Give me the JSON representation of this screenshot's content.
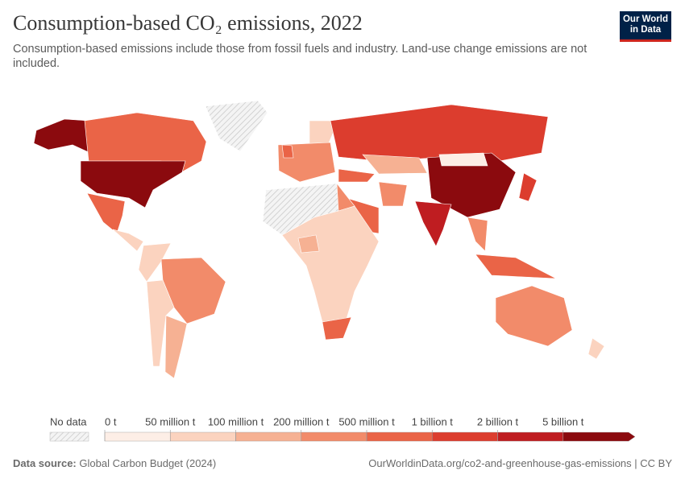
{
  "header": {
    "title": "Consumption-based CO₂ emissions, 2022",
    "subtitle": "Consumption-based emissions include those from fossil fuels and industry. Land-use change emissions are not included.",
    "logo": [
      "Our World",
      "in Data"
    ]
  },
  "chart_data": {
    "type": "choropleth",
    "legend": {
      "no_data_label": "No data",
      "ticks": [
        {
          "value": 0,
          "label": "0 t"
        },
        {
          "value": 50000000,
          "label": "50 million t"
        },
        {
          "value": 100000000,
          "label": "100 million t"
        },
        {
          "value": 200000000,
          "label": "200 million t"
        },
        {
          "value": 500000000,
          "label": "500 million t"
        },
        {
          "value": 1000000000,
          "label": "1 billion t"
        },
        {
          "value": 2000000000,
          "label": "2 billion t"
        },
        {
          "value": 5000000000,
          "label": "5 billion t"
        }
      ],
      "colors": [
        "#fdeee6",
        "#fbd3bf",
        "#f6b193",
        "#f28b6a",
        "#ea6447",
        "#dc3d2e",
        "#bf1d21",
        "#8b0a0e"
      ]
    }
  },
  "footer": {
    "source_label": "Data source:",
    "source": "Global Carbon Budget (2024)",
    "url": "OurWorldinData.org/co2-and-greenhouse-gas-emissions | CC BY"
  }
}
